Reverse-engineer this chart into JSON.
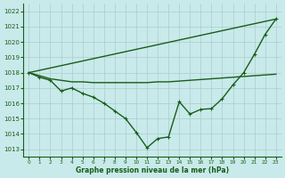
{
  "xlabel": "Graphe pression niveau de la mer (hPa)",
  "bg_color": "#c8eaea",
  "grid_color": "#aacccc",
  "line_color": "#1a5c1a",
  "x_ticks": [
    0,
    1,
    2,
    3,
    4,
    5,
    6,
    7,
    8,
    9,
    10,
    11,
    12,
    13,
    14,
    15,
    16,
    17,
    18,
    19,
    20,
    21,
    22,
    23
  ],
  "ylim": [
    1012.5,
    1022.5
  ],
  "yticks": [
    1013,
    1014,
    1015,
    1016,
    1017,
    1018,
    1019,
    1020,
    1021,
    1022
  ],
  "series": [
    {
      "x": [
        0,
        23
      ],
      "y": [
        1018.0,
        1021.5
      ],
      "with_markers": false,
      "linewidth": 1.0
    },
    {
      "x": [
        0,
        1,
        2,
        3,
        4,
        5,
        6,
        7,
        8,
        9,
        10,
        11,
        12,
        13,
        14,
        15,
        16,
        17,
        18,
        19,
        20,
        21,
        22,
        23
      ],
      "y": [
        1018.0,
        1017.8,
        1017.6,
        1017.5,
        1017.4,
        1017.4,
        1017.35,
        1017.35,
        1017.35,
        1017.35,
        1017.35,
        1017.35,
        1017.4,
        1017.4,
        1017.45,
        1017.5,
        1017.55,
        1017.6,
        1017.65,
        1017.7,
        1017.75,
        1017.8,
        1017.85,
        1017.9
      ],
      "with_markers": false,
      "linewidth": 1.0
    },
    {
      "x": [
        0,
        1,
        2,
        3,
        4,
        5,
        6,
        7,
        8,
        9,
        10,
        11,
        12,
        13,
        14,
        15,
        16,
        17,
        18,
        19,
        20,
        21,
        22,
        23
      ],
      "y": [
        1018.0,
        1017.7,
        1017.5,
        1016.8,
        1017.0,
        1016.65,
        1016.4,
        1016.0,
        1015.5,
        1015.0,
        1014.1,
        1013.1,
        1013.7,
        1013.8,
        1016.1,
        1015.3,
        1015.6,
        1015.65,
        1016.3,
        1017.2,
        1018.0,
        1019.2,
        1020.5,
        1021.5
      ],
      "with_markers": true,
      "linewidth": 1.0
    }
  ]
}
